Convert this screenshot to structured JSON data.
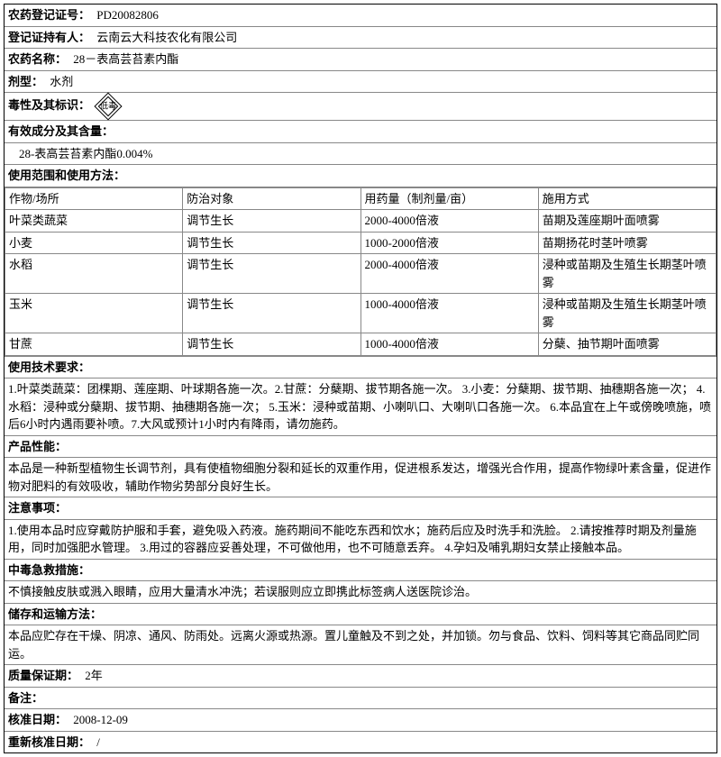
{
  "colors": {
    "border": "#000000",
    "cell_border": "#888888",
    "text": "#000000",
    "bg": "#ffffff"
  },
  "fonts": {
    "base_size": 13,
    "family": "SimSun"
  },
  "fields": {
    "reg_no": {
      "label": "农药登记证号：",
      "value": "PD20082806"
    },
    "holder": {
      "label": "登记证持有人：",
      "value": "云南云大科技农化有限公司"
    },
    "name": {
      "label": "农药名称：",
      "value": "28－表高芸苔素内酯"
    },
    "form": {
      "label": "剂型：",
      "value": "水剂"
    },
    "toxicity": {
      "label": "毒性及其标识：",
      "icon_text": "低毒"
    },
    "active": {
      "label": "有效成分及其含量：",
      "value": "28-表高芸苔素内酯0.004%"
    },
    "usage_scope_label": "使用范围和使用方法：",
    "tech_req": {
      "label": "使用技术要求：",
      "value": "1.叶菜类蔬菜：团棵期、莲座期、叶球期各施一次。2.甘蔗：分蘖期、拔节期各施一次。 3.小麦：分蘖期、拔节期、抽穗期各施一次； 4.水稻：浸种或分蘖期、拔节期、抽穗期各施一次； 5.玉米：浸种或苗期、小喇叭口、大喇叭口各施一次。 6.本品宜在上午或傍晚喷施，喷后6小时内遇雨要补喷。7.大风或预计1小时内有降雨，请勿施药。"
    },
    "performance": {
      "label": "产品性能：",
      "value": "本品是一种新型植物生长调节剂，具有使植物细胞分裂和延长的双重作用，促进根系发达，增强光合作用，提高作物绿叶素含量，促进作物对肥料的有效吸收，辅助作物劣势部分良好生长。"
    },
    "caution": {
      "label": "注意事项：",
      "value": "1.使用本品时应穿戴防护服和手套，避免吸入药液。施药期间不能吃东西和饮水；施药后应及时洗手和洗脸。 2.请按推荐时期及剂量施用，同时加强肥水管理。 3.用过的容器应妥善处理，不可做他用，也不可随意丢弃。 4.孕妇及哺乳期妇女禁止接触本品。"
    },
    "poison": {
      "label": "中毒急救措施：",
      "value": "不慎接触皮肤或溅入眼睛，应用大量清水冲洗；若误服则应立即携此标签病人送医院诊治。"
    },
    "storage": {
      "label": "储存和运输方法：",
      "value": "本品应贮存在干燥、阴凉、通风、防雨处。远离火源或热源。置儿童触及不到之处，并加锁。勿与食品、饮料、饲料等其它商品同贮同运。"
    },
    "shelf": {
      "label": "质量保证期：",
      "value": "2年"
    },
    "remark": {
      "label": "备注：",
      "value": ""
    },
    "approve_date": {
      "label": "核准日期：",
      "value": "2008-12-09"
    },
    "reapprove_date": {
      "label": "重新核准日期：",
      "value": "/"
    }
  },
  "usage_table": {
    "headers": [
      "作物/场所",
      "防治对象",
      "用药量（制剂量/亩）",
      "施用方式"
    ],
    "col_widths": [
      "25%",
      "25%",
      "25%",
      "25%"
    ],
    "rows": [
      [
        "叶菜类蔬菜",
        "调节生长",
        "2000-4000倍液",
        "苗期及莲座期叶面喷雾"
      ],
      [
        "小麦",
        "调节生长",
        "1000-2000倍液",
        "苗期扬花时茎叶喷雾"
      ],
      [
        "水稻",
        "调节生长",
        "2000-4000倍液",
        "浸种或苗期及生殖生长期茎叶喷雾"
      ],
      [
        "玉米",
        "调节生长",
        "1000-4000倍液",
        "浸种或苗期及生殖生长期茎叶喷雾"
      ],
      [
        "甘蔗",
        "调节生长",
        "1000-4000倍液",
        "分蘖、抽节期叶面喷雾"
      ]
    ]
  }
}
